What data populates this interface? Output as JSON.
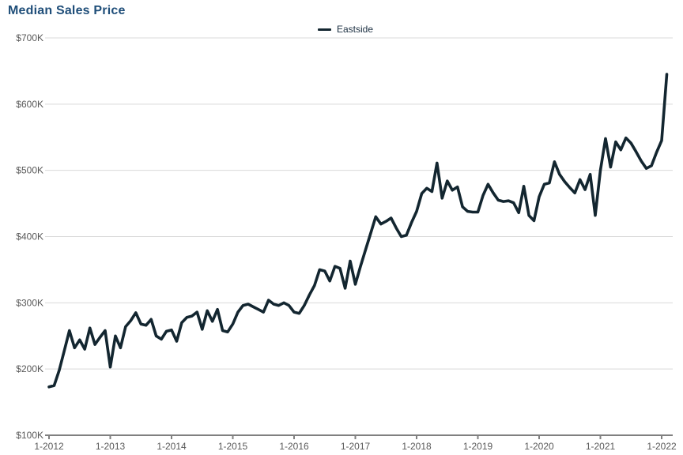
{
  "page": {
    "title": "Median Sales Price"
  },
  "legend": {
    "series_label": "Eastside"
  },
  "colors": {
    "title": "#1F4E79",
    "series_line": "#132630",
    "gridline": "#d9d9d9",
    "axis_line": "#808080",
    "axis_label": "#595959",
    "background": "#ffffff"
  },
  "chart_data": {
    "type": "line",
    "title": "Median Sales Price",
    "legend_position": "top-center",
    "grid": "horizontal",
    "x_unit": "month",
    "x_start_label": "1-2012",
    "x_end_label": "1-2022",
    "x_tick_labels": [
      "1-2012",
      "1-2013",
      "1-2014",
      "1-2015",
      "1-2016",
      "1-2017",
      "1-2018",
      "1-2019",
      "1-2020",
      "1-2021",
      "1-2022"
    ],
    "x_tick_every_months": 12,
    "xlabel": "",
    "ylabel": "",
    "y_ticks": [
      100,
      200,
      300,
      400,
      500,
      600,
      700
    ],
    "y_tick_labels": [
      "$100K",
      "$200K",
      "$300K",
      "$400K",
      "$500K",
      "$600K",
      "$700K"
    ],
    "ylim": [
      100,
      700
    ],
    "values_unit": "thousand USD (median sales price, monthly Jan 2012 - Feb 2022)",
    "series": [
      {
        "name": "Eastside",
        "color": "#132630",
        "values": [
          173,
          175,
          198,
          228,
          258,
          232,
          244,
          230,
          262,
          237,
          248,
          258,
          203,
          250,
          232,
          264,
          273,
          285,
          268,
          266,
          275,
          250,
          245,
          257,
          259,
          242,
          270,
          278,
          280,
          286,
          260,
          288,
          272,
          290,
          258,
          256,
          268,
          286,
          296,
          298,
          294,
          290,
          286,
          304,
          298,
          296,
          300,
          296,
          286,
          284,
          296,
          312,
          326,
          350,
          348,
          333,
          355,
          352,
          322,
          363,
          328,
          355,
          380,
          405,
          430,
          419,
          423,
          428,
          413,
          400,
          402,
          421,
          438,
          465,
          473,
          468,
          511,
          458,
          484,
          470,
          475,
          445,
          438,
          437,
          437,
          462,
          479,
          466,
          455,
          453,
          454,
          451,
          436,
          476,
          432,
          424,
          460,
          479,
          481,
          513,
          494,
          483,
          474,
          466,
          486,
          471,
          494,
          432,
          500,
          548,
          505,
          543,
          531,
          549,
          541,
          528,
          514,
          503,
          507,
          527,
          545,
          645
        ]
      }
    ]
  }
}
